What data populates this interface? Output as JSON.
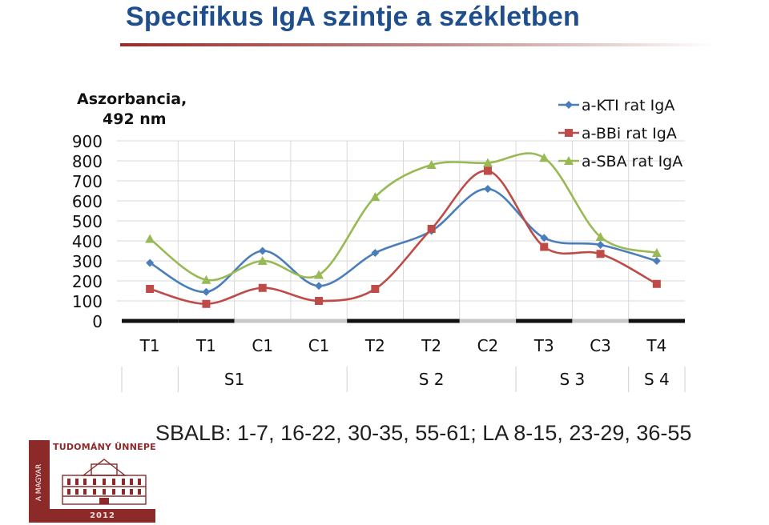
{
  "slide": {
    "title": "Specifikus IgA szintje a székletben",
    "footer_note": "SBALB: 1-7, 16-22, 30-35, 55-61; LA 8-15, 23-29, 36-55"
  },
  "logo": {
    "title": "TUDOMÁNY ÜNNEPE",
    "vertical_text": "A MAGYAR",
    "year": "2012"
  },
  "colors": {
    "title": "#1f4e8c",
    "accent_rule": "#9a2b2b",
    "series_blue": "#4a7ebb",
    "series_red": "#be4b48",
    "series_green": "#98b954",
    "phase_dark": "#111111",
    "phase_light": "#c8c8c8",
    "logo": "#8c2a2a"
  },
  "chart_data": {
    "type": "line",
    "smooth": true,
    "ylabel_lines": [
      "Aszorbancia,",
      "492 nm"
    ],
    "ylim": [
      0,
      900
    ],
    "yticks": [
      0,
      100,
      200,
      300,
      400,
      500,
      600,
      700,
      800,
      900
    ],
    "grid": true,
    "legend_position": "top-right",
    "categories": [
      "T1",
      "T1",
      "C1",
      "C1",
      "T2",
      "T2",
      "C2",
      "T3",
      "C3",
      "T4"
    ],
    "groups": [
      "S1",
      "S 2",
      "S 3",
      "S 4"
    ],
    "phase_bar": [
      "dark",
      "dark",
      "light",
      "light",
      "dark",
      "dark",
      "light",
      "dark",
      "light",
      "dark"
    ],
    "series": [
      {
        "name": "a-KTI rat IgA",
        "marker": "diamond",
        "color": "#4a7ebb",
        "values": [
          290,
          145,
          350,
          175,
          340,
          450,
          660,
          415,
          380,
          300
        ]
      },
      {
        "name": "a-BBi rat IgA",
        "marker": "square",
        "color": "#be4b48",
        "values": [
          160,
          85,
          165,
          100,
          160,
          460,
          750,
          370,
          335,
          185
        ]
      },
      {
        "name": "a-SBA rat IgA",
        "marker": "triangle",
        "color": "#98b954",
        "values": [
          410,
          205,
          300,
          230,
          620,
          780,
          790,
          815,
          420,
          340
        ]
      }
    ]
  }
}
